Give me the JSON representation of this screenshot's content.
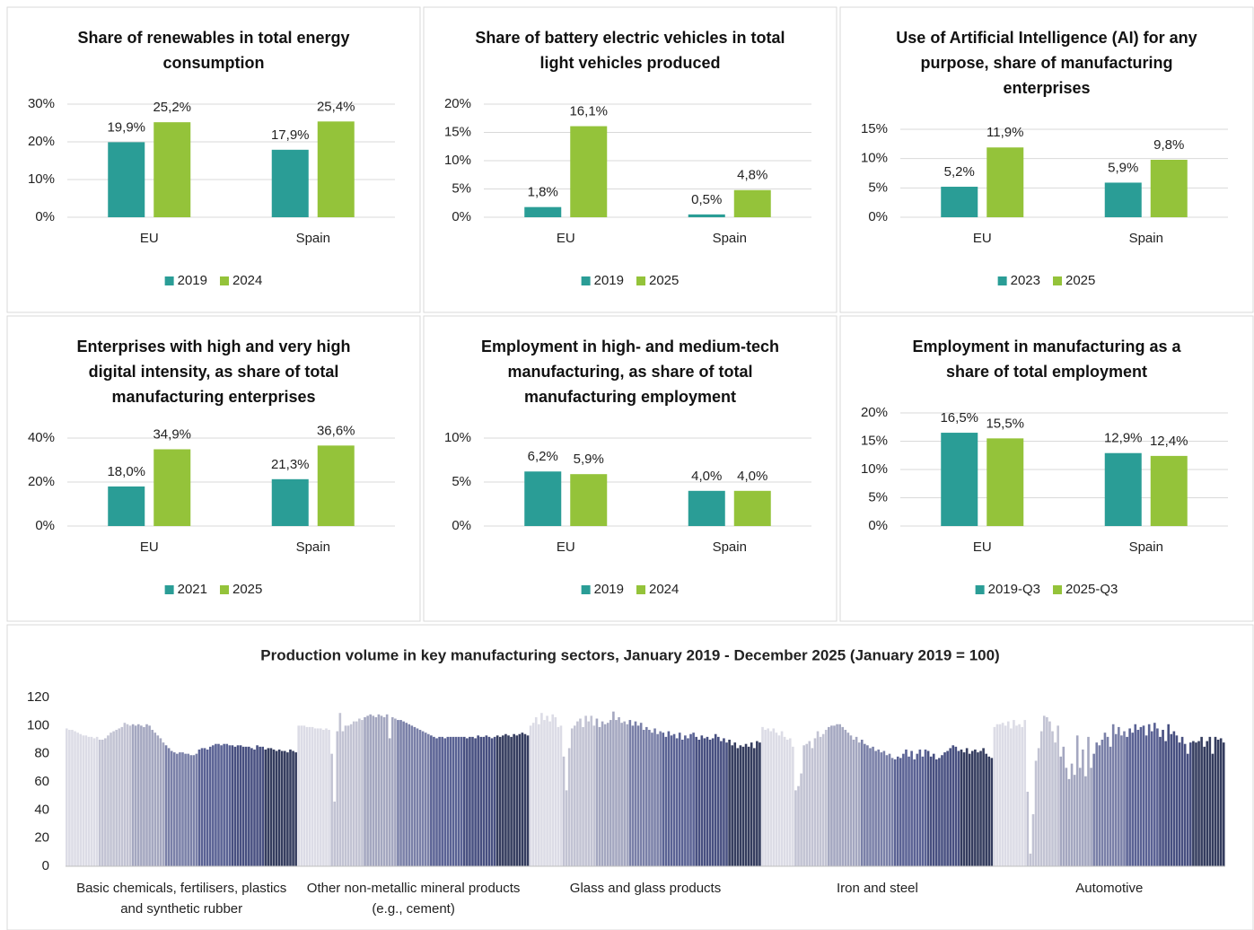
{
  "chart_data": [
    {
      "type": "bar",
      "title": "Share of renewables in total energy consumption",
      "categories": [
        "EU",
        "Spain"
      ],
      "series": [
        {
          "name": "2019",
          "color": "#2a9d96",
          "values": [
            19.9,
            17.9
          ],
          "value_labels": [
            "19,9%",
            "17,9%"
          ]
        },
        {
          "name": "2024",
          "color": "#94c33a",
          "values": [
            25.2,
            25.4
          ],
          "value_labels": [
            "25,2%",
            "25,4%"
          ]
        }
      ],
      "ylim": [
        0,
        30
      ],
      "yticks": [
        {
          "value": 0,
          "label": "0%"
        },
        {
          "value": 10,
          "label": "10%"
        },
        {
          "value": 20,
          "label": "20%"
        },
        {
          "value": 30,
          "label": "30%"
        }
      ],
      "grid": true,
      "legend": "bottom"
    },
    {
      "type": "bar",
      "title": "Share of battery electric vehicles in total light vehicles produced",
      "categories": [
        "EU",
        "Spain"
      ],
      "series": [
        {
          "name": "2019",
          "color": "#2a9d96",
          "values": [
            1.8,
            0.5
          ],
          "value_labels": [
            "1,8%",
            "0,5%"
          ]
        },
        {
          "name": "2025",
          "color": "#94c33a",
          "values": [
            16.1,
            4.8
          ],
          "value_labels": [
            "16,1%",
            "4,8%"
          ]
        }
      ],
      "ylim": [
        0,
        20
      ],
      "yticks": [
        {
          "value": 0,
          "label": "0%"
        },
        {
          "value": 5,
          "label": "5%"
        },
        {
          "value": 10,
          "label": "10%"
        },
        {
          "value": 15,
          "label": "15%"
        },
        {
          "value": 20,
          "label": "20%"
        }
      ],
      "grid": true,
      "legend": "bottom"
    },
    {
      "type": "bar",
      "title": "Use of Artificial Intelligence (AI) for any purpose, share of manufacturing enterprises",
      "categories": [
        "EU",
        "Spain"
      ],
      "series": [
        {
          "name": "2023",
          "color": "#2a9d96",
          "values": [
            5.2,
            5.9
          ],
          "value_labels": [
            "5,2%",
            "5,9%"
          ]
        },
        {
          "name": "2025",
          "color": "#94c33a",
          "values": [
            11.9,
            9.8
          ],
          "value_labels": [
            "11,9%",
            "9,8%"
          ]
        }
      ],
      "ylim": [
        0,
        15
      ],
      "yticks": [
        {
          "value": 0,
          "label": "0%"
        },
        {
          "value": 5,
          "label": "5%"
        },
        {
          "value": 10,
          "label": "10%"
        },
        {
          "value": 15,
          "label": "15%"
        }
      ],
      "grid": true,
      "legend": "bottom"
    },
    {
      "type": "bar",
      "title": "Enterprises with high and very high digital intensity, as share of total manufacturing enterprises",
      "categories": [
        "EU",
        "Spain"
      ],
      "series": [
        {
          "name": "2021",
          "color": "#2a9d96",
          "values": [
            18.0,
            21.3
          ],
          "value_labels": [
            "18,0%",
            "21,3%"
          ]
        },
        {
          "name": "2025",
          "color": "#94c33a",
          "values": [
            34.9,
            36.6
          ],
          "value_labels": [
            "34,9%",
            "36,6%"
          ]
        }
      ],
      "ylim": [
        0,
        40
      ],
      "yticks": [
        {
          "value": 0,
          "label": "0%"
        },
        {
          "value": 20,
          "label": "20%"
        },
        {
          "value": 40,
          "label": "40%"
        }
      ],
      "grid": true,
      "legend": "bottom"
    },
    {
      "type": "bar",
      "title": "Employment in high- and medium-tech manufacturing, as share of total manufacturing employment",
      "categories": [
        "EU",
        "Spain"
      ],
      "series": [
        {
          "name": "2019",
          "color": "#2a9d96",
          "values": [
            6.2,
            4.0
          ],
          "value_labels": [
            "6,2%",
            "4,0%"
          ]
        },
        {
          "name": "2024",
          "color": "#94c33a",
          "values": [
            5.9,
            4.0
          ],
          "value_labels": [
            "5,9%",
            "4,0%"
          ]
        }
      ],
      "ylim": [
        0,
        10
      ],
      "yticks": [
        {
          "value": 0,
          "label": "0%"
        },
        {
          "value": 5,
          "label": "5%"
        },
        {
          "value": 10,
          "label": "10%"
        }
      ],
      "grid": true,
      "legend": "bottom"
    },
    {
      "type": "bar",
      "title": "Employment in manufacturing as a share of total employment",
      "categories": [
        "EU",
        "Spain"
      ],
      "series": [
        {
          "name": "2019-Q3",
          "color": "#2a9d96",
          "values": [
            16.5,
            12.9
          ],
          "value_labels": [
            "16,5%",
            "12,9%"
          ]
        },
        {
          "name": "2025-Q3",
          "color": "#94c33a",
          "values": [
            15.5,
            12.4
          ],
          "value_labels": [
            "15,5%",
            "12,4%"
          ]
        }
      ],
      "ylim": [
        0,
        20
      ],
      "yticks": [
        {
          "value": 0,
          "label": "0%"
        },
        {
          "value": 5,
          "label": "5%"
        },
        {
          "value": 10,
          "label": "10%"
        },
        {
          "value": 15,
          "label": "15%"
        },
        {
          "value": 20,
          "label": "20%"
        }
      ],
      "grid": true,
      "legend": "bottom"
    },
    {
      "type": "column",
      "title": "Production volume in key manufacturing sectors, January 2019 - December 2025 (January 2019 = 100)",
      "categories": [
        "Basic chemicals, fertilisers, plastics and synthetic rubber",
        "Other non-metallic mineral products (e.g., cement)",
        "Glass and glass products",
        "Iron and steel",
        "Automotive"
      ],
      "year_colors": [
        "#dcdce6",
        "#c2c3d3",
        "#a4a7c0",
        "#7a80a8",
        "#5a6294",
        "#474f80",
        "#343c5e"
      ],
      "values": [
        [
          98,
          97,
          97,
          96,
          95,
          94,
          93,
          93,
          92,
          92,
          91,
          92,
          90,
          90,
          91,
          93,
          95,
          96,
          97,
          98,
          99,
          102,
          101,
          100,
          101,
          100,
          101,
          100,
          99,
          101,
          100,
          97,
          95,
          93,
          91,
          88,
          86,
          84,
          82,
          81,
          80,
          81,
          81,
          80,
          80,
          79,
          79,
          80,
          83,
          84,
          84,
          83,
          85,
          86,
          87,
          87,
          86,
          87,
          87,
          86,
          86,
          85,
          86,
          86,
          85,
          85,
          85,
          84,
          83,
          86,
          85,
          85,
          83,
          84,
          84,
          83,
          82,
          83,
          82,
          82,
          81,
          83,
          82,
          81
        ],
        [
          100,
          100,
          100,
          99,
          99,
          99,
          98,
          98,
          98,
          97,
          98,
          97,
          80,
          46,
          96,
          109,
          96,
          100,
          100,
          101,
          103,
          103,
          105,
          104,
          106,
          107,
          108,
          107,
          106,
          108,
          107,
          106,
          108,
          91,
          106,
          105,
          104,
          104,
          103,
          102,
          101,
          100,
          99,
          98,
          97,
          96,
          95,
          94,
          93,
          92,
          91,
          92,
          92,
          91,
          92,
          92,
          92,
          92,
          92,
          92,
          92,
          91,
          92,
          92,
          91,
          93,
          92,
          92,
          93,
          92,
          91,
          92,
          93,
          92,
          93,
          94,
          93,
          92,
          94,
          93,
          94,
          95,
          94,
          93
        ],
        [
          100,
          102,
          106,
          101,
          109,
          104,
          107,
          103,
          108,
          106,
          99,
          100,
          78,
          54,
          84,
          98,
          100,
          103,
          105,
          99,
          107,
          103,
          107,
          100,
          105,
          99,
          103,
          101,
          102,
          104,
          110,
          104,
          106,
          102,
          103,
          101,
          104,
          100,
          103,
          100,
          102,
          97,
          99,
          97,
          95,
          98,
          94,
          96,
          95,
          92,
          96,
          93,
          94,
          91,
          95,
          90,
          93,
          91,
          94,
          95,
          92,
          90,
          93,
          91,
          92,
          90,
          91,
          94,
          92,
          89,
          91,
          88,
          90,
          86,
          88,
          84,
          86,
          85,
          87,
          85,
          88,
          84,
          89,
          88
        ],
        [
          99,
          97,
          98,
          96,
          98,
          95,
          93,
          96,
          92,
          90,
          91,
          85,
          54,
          57,
          66,
          86,
          87,
          89,
          84,
          91,
          96,
          92,
          94,
          97,
          99,
          100,
          100,
          101,
          101,
          99,
          97,
          95,
          93,
          90,
          92,
          88,
          90,
          87,
          86,
          84,
          85,
          82,
          83,
          81,
          82,
          79,
          80,
          77,
          76,
          78,
          77,
          80,
          83,
          78,
          82,
          76,
          80,
          83,
          78,
          83,
          82,
          78,
          80,
          76,
          77,
          79,
          81,
          82,
          84,
          86,
          85,
          82,
          83,
          81,
          84,
          80,
          82,
          83,
          81,
          82,
          84,
          80,
          78,
          77
        ],
        [
          99,
          101,
          101,
          102,
          100,
          103,
          98,
          104,
          100,
          101,
          99,
          104,
          53,
          9,
          37,
          75,
          84,
          96,
          107,
          106,
          103,
          96,
          88,
          100,
          78,
          85,
          70,
          62,
          73,
          65,
          93,
          70,
          83,
          64,
          92,
          70,
          80,
          88,
          86,
          90,
          95,
          92,
          85,
          101,
          94,
          99,
          93,
          96,
          92,
          98,
          95,
          101,
          97,
          99,
          100,
          93,
          101,
          96,
          102,
          98,
          92,
          97,
          89,
          101,
          94,
          96,
          93,
          88,
          92,
          87,
          80,
          88,
          89,
          88,
          89,
          92,
          85,
          89,
          92,
          80,
          92,
          90,
          91,
          88
        ]
      ],
      "ylim": [
        0,
        120
      ],
      "yticks": [
        0,
        20,
        40,
        60,
        80,
        100,
        120
      ],
      "grid": false
    }
  ]
}
